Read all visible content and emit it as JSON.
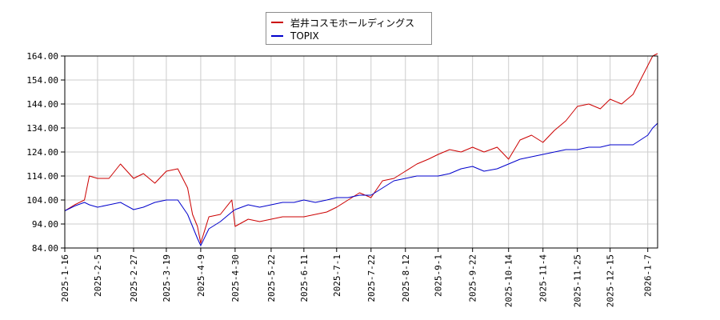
{
  "colors": {
    "series_1": "#cc0000",
    "series_2": "#0000cc",
    "grid": "#cccccc",
    "axis": "#000000"
  },
  "chart_data": {
    "type": "line",
    "title": "",
    "xlabel": "",
    "ylabel": "",
    "ylim": [
      84.0,
      164.0
    ],
    "grid": true,
    "legend_position": "top-center",
    "x_ticks": [
      "2025-1-16",
      "2025-2-5",
      "2025-2-27",
      "2025-3-19",
      "2025-4-9",
      "2025-4-30",
      "2025-5-22",
      "2025-6-11",
      "2025-7-1",
      "2025-7-22",
      "2025-8-12",
      "2025-9-1",
      "2025-9-22",
      "2025-10-14",
      "2025-11-4",
      "2025-11-25",
      "2025-12-15",
      "2026-1-7"
    ],
    "y_ticks": [
      "84.00",
      "94.00",
      "104.00",
      "114.00",
      "124.00",
      "134.00",
      "144.00",
      "154.00",
      "164.00"
    ],
    "x": [
      "2025-1-16",
      "2025-1-22",
      "2025-1-28",
      "2025-1-31",
      "2025-2-5",
      "2025-2-12",
      "2025-2-19",
      "2025-2-27",
      "2025-3-5",
      "2025-3-12",
      "2025-3-19",
      "2025-3-26",
      "2025-4-1",
      "2025-4-4",
      "2025-4-7",
      "2025-4-9",
      "2025-4-14",
      "2025-4-21",
      "2025-4-28",
      "2025-4-30",
      "2025-5-8",
      "2025-5-15",
      "2025-5-22",
      "2025-5-29",
      "2025-6-5",
      "2025-6-11",
      "2025-6-18",
      "2025-6-25",
      "2025-7-1",
      "2025-7-8",
      "2025-7-15",
      "2025-7-22",
      "2025-7-29",
      "2025-8-5",
      "2025-8-12",
      "2025-8-19",
      "2025-8-26",
      "2025-9-1",
      "2025-9-8",
      "2025-9-15",
      "2025-9-22",
      "2025-9-29",
      "2025-10-7",
      "2025-10-14",
      "2025-10-21",
      "2025-10-28",
      "2025-11-4",
      "2025-11-11",
      "2025-11-18",
      "2025-11-25",
      "2025-12-2",
      "2025-12-9",
      "2025-12-15",
      "2025-12-22",
      "2025-12-29",
      "2026-1-7",
      "2026-1-10",
      "2026-1-13"
    ],
    "series": [
      {
        "name": "岩井コスモホールディングス",
        "values": [
          99.5,
          102,
          104,
          114,
          113,
          113,
          119,
          113,
          115,
          111,
          116,
          117,
          109,
          98,
          93,
          86,
          97,
          98,
          104,
          93,
          96,
          95,
          96,
          97,
          97,
          97,
          98,
          99,
          101,
          104,
          107,
          105,
          112,
          113,
          116,
          119,
          121,
          123,
          125,
          124,
          126,
          124,
          126,
          121,
          129,
          131,
          128,
          133,
          137,
          143,
          144,
          142,
          146,
          144,
          148,
          160,
          164,
          165
        ]
      },
      {
        "name": "TOPIX",
        "values": [
          99.5,
          101.5,
          103,
          102,
          101,
          102,
          103,
          100,
          101,
          103,
          104,
          104,
          98,
          93,
          88,
          85,
          92,
          95,
          99,
          100,
          102,
          101,
          102,
          103,
          103,
          104,
          103,
          104,
          105,
          105,
          106,
          106,
          109,
          112,
          113,
          114,
          114,
          114,
          115,
          117,
          118,
          116,
          117,
          119,
          121,
          122,
          123,
          124,
          125,
          125,
          126,
          126,
          127,
          127,
          127,
          131,
          134,
          136
        ]
      }
    ]
  }
}
